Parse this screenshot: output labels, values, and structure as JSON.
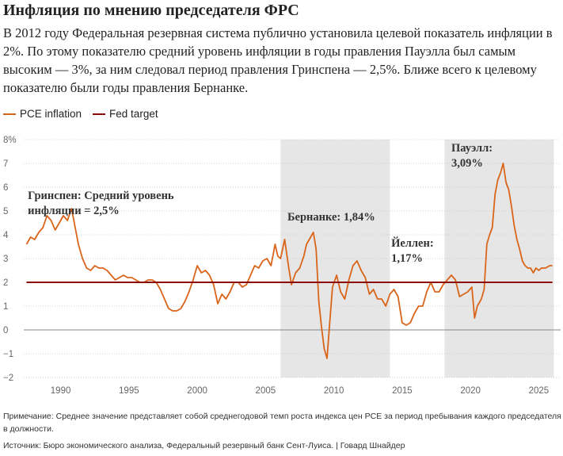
{
  "title": "Инфляция по мнению председателя ФРС",
  "subtitle": "В 2012 году Федеральная резервная система публично установила целевой показатель инфляции в 2%. По этому показателю средний уровень инфляции в годы правления Пауэлла был самым высоким — 3%, за ним следовал период правления Гринспена — 2,5%. Ближе всего к целевому показателю были годы правления Бернанке.",
  "note": "Примечание: Среднее значение представляет собой среднегодовой темп роста индекса цен PCE за период пребывания каждого председателя в должности.",
  "source": "Источник: Бюро экономического анализа, Федеральный резервный банк Сент-Луиса. | Говард Шнайдер",
  "chart_data": {
    "type": "line",
    "xlim": [
      1987.3,
      2026.6
    ],
    "ylim": [
      -2,
      8
    ],
    "grid": true,
    "legend_position": "top-left",
    "x_ticks": [
      1990,
      1995,
      2000,
      2005,
      2010,
      2015,
      2020,
      2025
    ],
    "y_ticks": [
      {
        "value": -2,
        "label": "−2"
      },
      {
        "value": -1,
        "label": "−1"
      },
      {
        "value": 0,
        "label": "0"
      },
      {
        "value": 1,
        "label": "1"
      },
      {
        "value": 2,
        "label": "2"
      },
      {
        "value": 3,
        "label": "3"
      },
      {
        "value": 4,
        "label": "4"
      },
      {
        "value": 5,
        "label": "5"
      },
      {
        "value": 6,
        "label": "6"
      },
      {
        "value": 7,
        "label": "7"
      },
      {
        "value": 8,
        "label": "8%"
      }
    ],
    "shaded_periods": [
      {
        "start": 2006.1,
        "end": 2014.1
      },
      {
        "start": 2018.1,
        "end": 2026.1
      }
    ],
    "annotations": [
      {
        "lines": [
          "Гринспен: Средний уровень",
          "инфляции = 2,5%"
        ],
        "x": 1987.6,
        "y": 5.5
      },
      {
        "lines": [
          "Бернанке: 1,84%"
        ],
        "x": 2006.6,
        "y": 4.6
      },
      {
        "lines": [
          "Йеллен:",
          "1,17%"
        ],
        "x": 2014.2,
        "y": 3.5
      },
      {
        "lines": [
          "Пауэлл:",
          "3,09%"
        ],
        "x": 2018.6,
        "y": 7.5
      }
    ],
    "series": [
      {
        "name": "PCE inflation",
        "color": "#d9651b",
        "x": [
          1987.5,
          1987.8,
          1988.1,
          1988.4,
          1988.7,
          1989.0,
          1989.3,
          1989.6,
          1989.9,
          1990.2,
          1990.5,
          1990.8,
          1991.0,
          1991.3,
          1991.6,
          1991.9,
          1992.2,
          1992.5,
          1992.8,
          1993.1,
          1993.4,
          1993.7,
          1994.0,
          1994.3,
          1994.6,
          1994.9,
          1995.2,
          1995.5,
          1995.8,
          1996.1,
          1996.4,
          1996.7,
          1997.0,
          1997.3,
          1997.6,
          1997.9,
          1998.2,
          1998.5,
          1998.8,
          1999.1,
          1999.4,
          1999.7,
          2000.0,
          2000.3,
          2000.6,
          2000.9,
          2001.2,
          2001.5,
          2001.8,
          2002.1,
          2002.4,
          2002.7,
          2003.0,
          2003.3,
          2003.6,
          2003.9,
          2004.2,
          2004.5,
          2004.8,
          2005.1,
          2005.4,
          2005.7,
          2005.9,
          2006.1,
          2006.4,
          2006.7,
          2006.9,
          2007.2,
          2007.5,
          2007.8,
          2008.0,
          2008.3,
          2008.5,
          2008.7,
          2008.9,
          2009.1,
          2009.3,
          2009.5,
          2009.7,
          2009.9,
          2010.2,
          2010.5,
          2010.8,
          2011.1,
          2011.4,
          2011.7,
          2012.0,
          2012.3,
          2012.6,
          2012.9,
          2013.2,
          2013.5,
          2013.8,
          2014.1,
          2014.4,
          2014.7,
          2015.0,
          2015.3,
          2015.6,
          2015.9,
          2016.2,
          2016.5,
          2016.8,
          2017.1,
          2017.4,
          2017.7,
          2018.0,
          2018.3,
          2018.6,
          2018.9,
          2019.2,
          2019.5,
          2019.8,
          2020.1,
          2020.3,
          2020.5,
          2020.8,
          2021.0,
          2021.2,
          2021.4,
          2021.6,
          2021.8,
          2022.0,
          2022.2,
          2022.4,
          2022.6,
          2022.8,
          2023.0,
          2023.2,
          2023.4,
          2023.6,
          2023.8,
          2024.0,
          2024.2,
          2024.4,
          2024.6,
          2024.8,
          2025.0,
          2025.2,
          2025.5,
          2025.8,
          2026.0
        ],
        "values": [
          3.6,
          3.9,
          3.8,
          4.1,
          4.3,
          4.8,
          4.6,
          4.2,
          4.5,
          4.8,
          4.6,
          5.1,
          4.5,
          3.6,
          3.0,
          2.6,
          2.5,
          2.7,
          2.6,
          2.6,
          2.5,
          2.3,
          2.1,
          2.2,
          2.3,
          2.2,
          2.2,
          2.1,
          2.0,
          2.0,
          2.1,
          2.1,
          2.0,
          1.7,
          1.3,
          0.9,
          0.8,
          0.8,
          0.9,
          1.2,
          1.6,
          2.1,
          2.7,
          2.4,
          2.5,
          2.3,
          1.9,
          1.1,
          1.5,
          1.3,
          1.6,
          2.0,
          2.0,
          1.8,
          1.9,
          2.3,
          2.7,
          2.6,
          2.9,
          3.0,
          2.7,
          3.6,
          3.1,
          3.0,
          3.8,
          2.6,
          1.9,
          2.4,
          2.6,
          3.1,
          3.6,
          3.9,
          4.1,
          3.4,
          1.2,
          0.1,
          -0.8,
          -1.2,
          0.3,
          1.8,
          2.3,
          1.6,
          1.3,
          2.1,
          2.7,
          2.9,
          2.5,
          2.2,
          1.5,
          1.7,
          1.3,
          1.3,
          1.0,
          1.5,
          1.7,
          1.4,
          0.3,
          0.2,
          0.3,
          0.7,
          1.0,
          1.0,
          1.6,
          2.0,
          1.6,
          1.6,
          1.9,
          2.1,
          2.3,
          2.1,
          1.4,
          1.5,
          1.6,
          1.8,
          0.5,
          1.0,
          1.3,
          1.7,
          3.6,
          4.0,
          4.3,
          5.7,
          6.3,
          6.6,
          7.0,
          6.2,
          5.9,
          5.2,
          4.4,
          3.8,
          3.4,
          2.9,
          2.7,
          2.6,
          2.6,
          2.4,
          2.6,
          2.5,
          2.6,
          2.6,
          2.7,
          2.7
        ]
      },
      {
        "name": "Fed target",
        "color": "#8b0b0b",
        "x": [
          1987.5,
          2026.0
        ],
        "values": [
          2,
          2
        ]
      }
    ]
  }
}
